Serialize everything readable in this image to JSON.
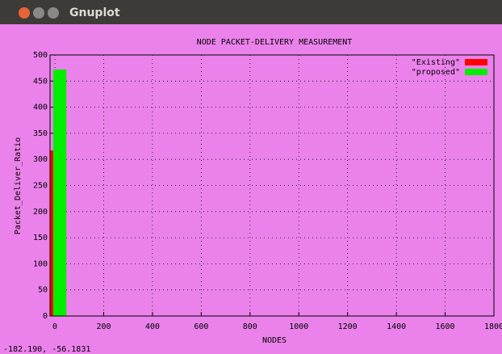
{
  "window": {
    "title": "Gnuplot"
  },
  "status": "-182.190, -56.1831",
  "chart_data": {
    "type": "bar",
    "title": "NODE PACKET-DELIVERY MEASUREMENT",
    "xlabel": "NODES",
    "ylabel": "Packet_Deliver_Ratio",
    "xlim": [
      -20,
      1800
    ],
    "ylim": [
      0,
      500
    ],
    "xticks": [
      0,
      200,
      400,
      600,
      800,
      1000,
      1200,
      1400,
      1600,
      1800
    ],
    "yticks": [
      0,
      50,
      100,
      150,
      200,
      250,
      300,
      350,
      400,
      450,
      500
    ],
    "grid": true,
    "legend": "upper right",
    "boxwidth": 54,
    "series": [
      {
        "name": "\"Existing\"",
        "color": "#ff0000",
        "x": [
          -34
        ],
        "values": [
          317
        ]
      },
      {
        "name": "\"proposed\"",
        "color": "#00ee00",
        "x": [
          20
        ],
        "values": [
          472
        ]
      }
    ]
  }
}
